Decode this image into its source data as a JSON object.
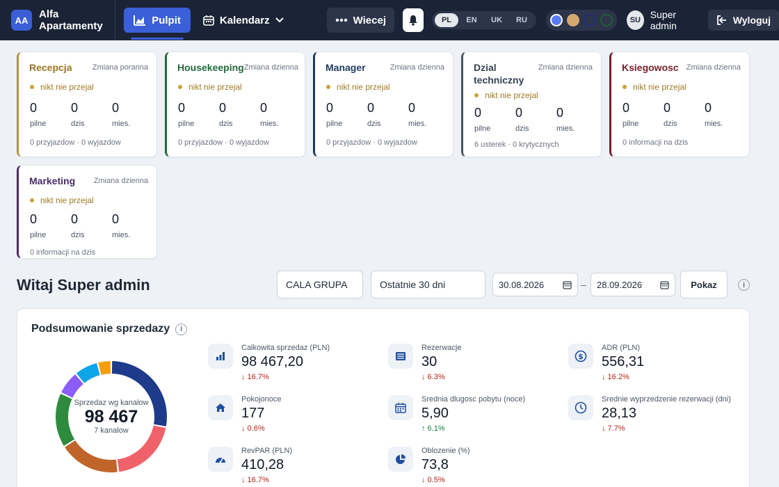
{
  "brand": {
    "initials": "AA",
    "name": "Alfa Apartamenty"
  },
  "nav": {
    "dashboard_label": "Pulpit",
    "calendar_label": "Kalendarz",
    "more_label": "Wiecej"
  },
  "languages": [
    {
      "code": "PL",
      "active": true
    },
    {
      "code": "EN",
      "active": false
    },
    {
      "code": "UK",
      "active": false
    },
    {
      "code": "RU",
      "active": false
    }
  ],
  "theme_colors": [
    "#5b7cf7",
    "#d4a970",
    "#1e2f7a",
    "#1f5a3a"
  ],
  "user": {
    "initials": "SU",
    "name": "Super admin",
    "logout_label": "Wyloguj"
  },
  "departments": [
    {
      "title": "Recepcja",
      "shift": "Zmiana poranna",
      "accent": "#b8923a",
      "title_color": "#9a7426",
      "status": "nikt nie przejal",
      "stats": [
        {
          "value": "0",
          "label": "pilne"
        },
        {
          "value": "0",
          "label": "dzis"
        },
        {
          "value": "0",
          "label": "mies."
        }
      ],
      "footer": "0 przyjazdow · 0 wyjazdow"
    },
    {
      "title": "Housekeeping",
      "shift": "Zmiana dzienna",
      "accent": "#1e6b3a",
      "title_color": "#1e6b3a",
      "status": "nikt nie przejal",
      "stats": [
        {
          "value": "0",
          "label": "pilne"
        },
        {
          "value": "0",
          "label": "dzis"
        },
        {
          "value": "0",
          "label": "mies."
        }
      ],
      "footer": "0 przyjazdow · 0 wyjazdow"
    },
    {
      "title": "Manager",
      "shift": "Zmiana dzienna",
      "accent": "#1e3a5f",
      "title_color": "#1e3a5f",
      "status": "nikt nie przejal",
      "stats": [
        {
          "value": "0",
          "label": "pilne"
        },
        {
          "value": "0",
          "label": "dzis"
        },
        {
          "value": "0",
          "label": "mies."
        }
      ],
      "footer": "0 przyjazdow · 0 wyjazdow"
    },
    {
      "title": "Dzial techniczny",
      "shift": "Zmiana dzienna",
      "accent": "#4b5563",
      "title_color": "#374151",
      "status": "nikt nie przejal",
      "stats": [
        {
          "value": "0",
          "label": "pilne"
        },
        {
          "value": "0",
          "label": "dzis"
        },
        {
          "value": "0",
          "label": "mies."
        }
      ],
      "footer": "6 usterek · 0 krytycznych"
    },
    {
      "title": "Ksiegowosc",
      "shift": "Zmiana dzienna",
      "accent": "#7a1f2b",
      "title_color": "#7a1f2b",
      "status": "nikt nie przejal",
      "stats": [
        {
          "value": "0",
          "label": "pilne"
        },
        {
          "value": "0",
          "label": "dzis"
        },
        {
          "value": "0",
          "label": "mies."
        }
      ],
      "footer": "0 informacji na dzis"
    },
    {
      "title": "Marketing",
      "shift": "Zmiana dzienna",
      "accent": "#4a2a6b",
      "title_color": "#4a2a6b",
      "status": "nikt nie przejal",
      "stats": [
        {
          "value": "0",
          "label": "pilne"
        },
        {
          "value": "0",
          "label": "dzis"
        },
        {
          "value": "0",
          "label": "mies."
        }
      ],
      "footer": "0 informacji na dzis"
    }
  ],
  "welcome": "Witaj Super admin",
  "filters": {
    "group": "CALA GRUPA",
    "period": "Ostatnie 30 dni",
    "date_from": "30.08.2026",
    "date_to": "28.09.2026",
    "show_label": "Pokaz",
    "info": "i"
  },
  "summary": {
    "title": "Podsumowanie sprzedazy",
    "info": "i",
    "donut": {
      "label": "Sprzedaz wg kanalow",
      "value": "98 467",
      "sub": "7 kanalow",
      "segments": [
        {
          "share": 0.28,
          "color": "#1e3a8a"
        },
        {
          "share": 0.2,
          "color": "#f0626a"
        },
        {
          "share": 0.18,
          "color": "#c0652a"
        },
        {
          "share": 0.16,
          "color": "#2e8b3e"
        },
        {
          "share": 0.07,
          "color": "#8b5cf6"
        },
        {
          "share": 0.07,
          "color": "#0ea5e9"
        },
        {
          "share": 0.04,
          "color": "#f59e0b"
        }
      ]
    },
    "kpis": [
      {
        "label": "Calkowita sprzedaz (PLN)",
        "value": "98 467,20",
        "change": "↓ 16.7%",
        "trend": "down",
        "icon": "bar-chart-icon"
      },
      {
        "label": "Rezerwacje",
        "value": "30",
        "change": "↓ 6.3%",
        "trend": "down",
        "icon": "list-icon"
      },
      {
        "label": "ADR (PLN)",
        "value": "556,31",
        "change": "↓ 16.2%",
        "trend": "down",
        "icon": "dollar-icon"
      },
      {
        "label": "Pokojonoce",
        "value": "177",
        "change": "↓ 0.6%",
        "trend": "down",
        "icon": "home-icon"
      },
      {
        "label": "Srednia dlugosc pobytu (noce)",
        "value": "5,90",
        "change": "↑ 6.1%",
        "trend": "up",
        "icon": "calendar-icon"
      },
      {
        "label": "Srednie wyprzedzenie rezerwacji (dni)",
        "value": "28,13",
        "change": "↓ 7.7%",
        "trend": "down",
        "icon": "clock-icon"
      },
      {
        "label": "RevPAR (PLN)",
        "value": "410,28",
        "change": "↓ 16.7%",
        "trend": "down",
        "icon": "gauge-icon"
      },
      {
        "label": "Oblozenie (%)",
        "value": "73,8",
        "change": "↓ 0.5%",
        "trend": "down",
        "icon": "pie-icon"
      }
    ]
  }
}
